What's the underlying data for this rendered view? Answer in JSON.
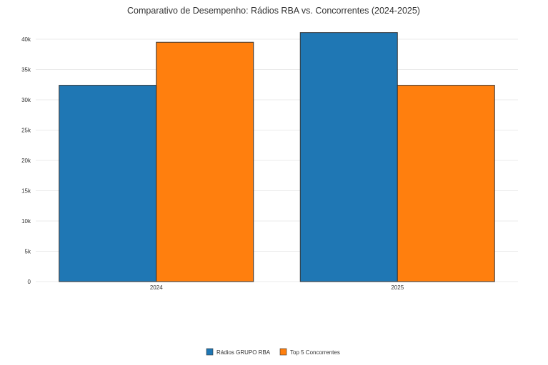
{
  "chart_data": {
    "type": "bar",
    "title": "Comparativo de Desempenho: Rádios RBA vs. Concorrentes (2024-2025)",
    "xlabel": "",
    "ylabel": "",
    "categories": [
      "2024",
      "2025"
    ],
    "series": [
      {
        "name": "Rádios GRUPO RBA",
        "color": "#1f77b4",
        "values": [
          32400,
          41100
        ]
      },
      {
        "name": "Top 5 Concorrentes",
        "color": "#ff7f0e",
        "values": [
          39500,
          32400
        ]
      }
    ],
    "ylim": [
      0,
      42000
    ],
    "yticks": [
      0,
      5000,
      10000,
      15000,
      20000,
      25000,
      30000,
      35000,
      40000
    ],
    "ytick_labels": [
      "0",
      "5k",
      "10k",
      "15k",
      "20k",
      "25k",
      "30k",
      "35k",
      "40k"
    ],
    "grid": true,
    "legend_position": "bottom-center"
  }
}
